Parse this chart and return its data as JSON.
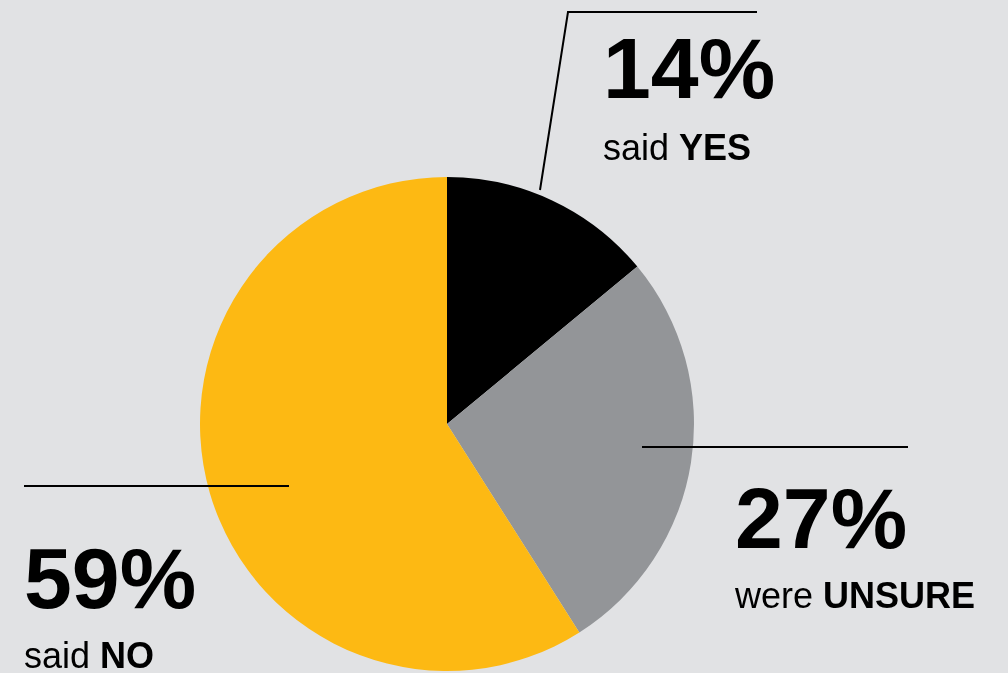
{
  "chart_data": {
    "type": "pie",
    "categories": [
      "said YES",
      "were UNSURE",
      "said NO"
    ],
    "values": [
      14,
      27,
      59
    ],
    "colors": [
      "#000000",
      "#939598",
      "#fdb913"
    ],
    "value_labels": [
      "14%",
      "27%",
      "59%"
    ],
    "legend": false
  }
}
